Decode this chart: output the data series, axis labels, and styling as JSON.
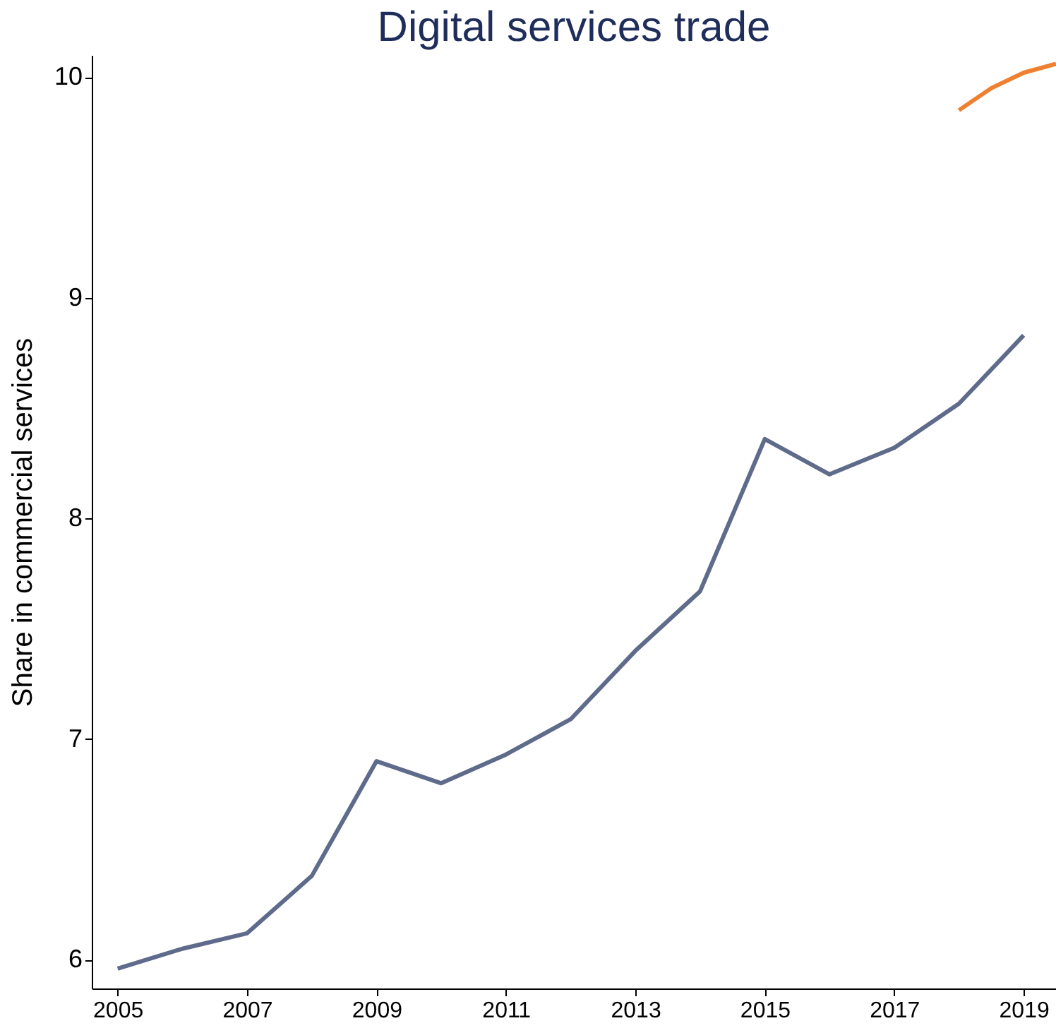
{
  "chart_data": {
    "type": "line",
    "title": "Digital services trade",
    "ylabel": "Share in commercial services",
    "x": [
      2005,
      2006,
      2007,
      2008,
      2009,
      2010,
      2011,
      2012,
      2013,
      2014,
      2015,
      2016,
      2017,
      2018,
      2019
    ],
    "series": [
      {
        "color": "#5f6b8a",
        "values": [
          5.96,
          6.05,
          6.12,
          6.38,
          6.9,
          6.8,
          6.93,
          7.09,
          7.4,
          7.67,
          8.36,
          8.2,
          8.32,
          8.52,
          8.83
        ]
      },
      {
        "color": "#f08030",
        "x": [
          2018,
          2018.5,
          2019,
          2019.5
        ],
        "values": [
          9.85,
          9.95,
          10.02,
          10.06
        ]
      }
    ],
    "xlim": [
      2004.6,
      2019.5
    ],
    "ylim": [
      5.87,
      10.1
    ],
    "xticks": [
      2005,
      2007,
      2009,
      2011,
      2013,
      2015,
      2017,
      2019
    ],
    "yticks": [
      6,
      7,
      8,
      9,
      10
    ],
    "grid": false
  }
}
